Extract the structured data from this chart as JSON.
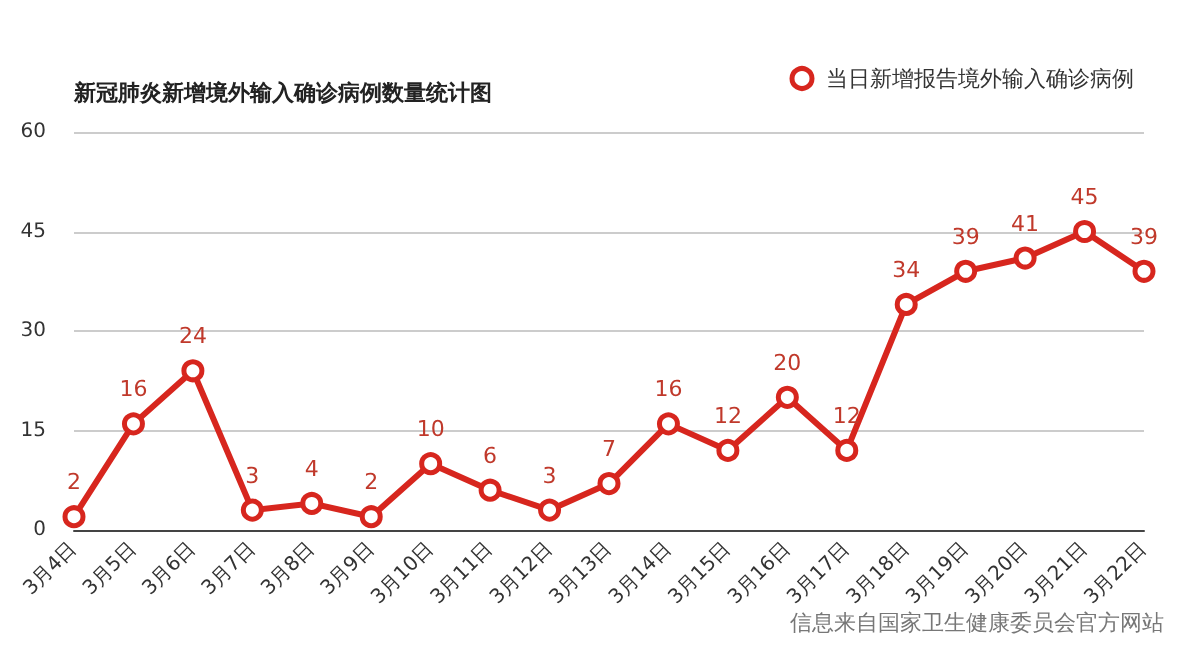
{
  "chart_data": {
    "type": "line",
    "title": "新冠肺炎新增境外输入确诊病例数量统计图",
    "categories": [
      "3月4日",
      "3月5日",
      "3月6日",
      "3月7日",
      "3月8日",
      "3月9日",
      "3月10日",
      "3月11日",
      "3月12日",
      "3月13日",
      "3月14日",
      "3月15日",
      "3月16日",
      "3月17日",
      "3月18日",
      "3月19日",
      "3月20日",
      "3月21日",
      "3月22日"
    ],
    "series": [
      {
        "name": "当日新增报告境外输入确诊病例",
        "color": "#d7261e",
        "values": [
          2,
          16,
          24,
          3,
          4,
          2,
          10,
          6,
          3,
          7,
          16,
          12,
          20,
          12,
          34,
          39,
          41,
          45,
          39
        ]
      }
    ],
    "ylim": [
      0,
      60
    ],
    "yticks": [
      0,
      15,
      30,
      45,
      60
    ],
    "grid": "y",
    "legend": "top right",
    "marker": "circle",
    "line_style": "solid",
    "data_labels": true,
    "annotations": [
      "信息来自国家卫生健康委员会官方网站"
    ]
  }
}
